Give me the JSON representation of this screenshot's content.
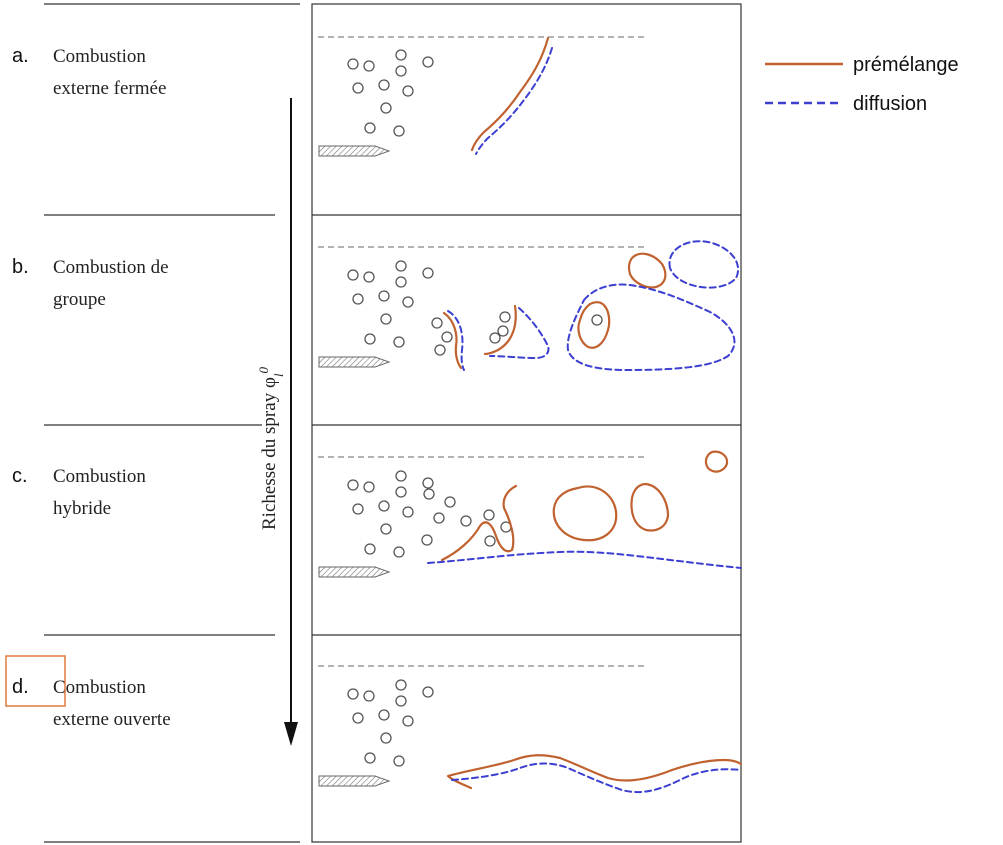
{
  "regimes": [
    {
      "letter": "a.",
      "line1": "Combustion",
      "line2": "externe fermée"
    },
    {
      "letter": "b.",
      "line1": "Combustion de",
      "line2": "groupe"
    },
    {
      "letter": "c.",
      "line1": "Combustion",
      "line2": "hybride"
    },
    {
      "letter": "d.",
      "line1": "Combustion",
      "line2": "externe ouverte"
    }
  ],
  "axis": {
    "label": "Richesse du spray φ",
    "label_sub": "l",
    "label_sup": "0"
  },
  "legend": [
    {
      "label": "prémélange",
      "style": "solid",
      "color": "#c0622f"
    },
    {
      "label": "diffusion",
      "style": "dashed",
      "color": "#3c3fd0"
    }
  ],
  "colors": {
    "premix": "#c0622f",
    "diffusion": "#3c3fd0",
    "highlight": "#e07a3c"
  }
}
